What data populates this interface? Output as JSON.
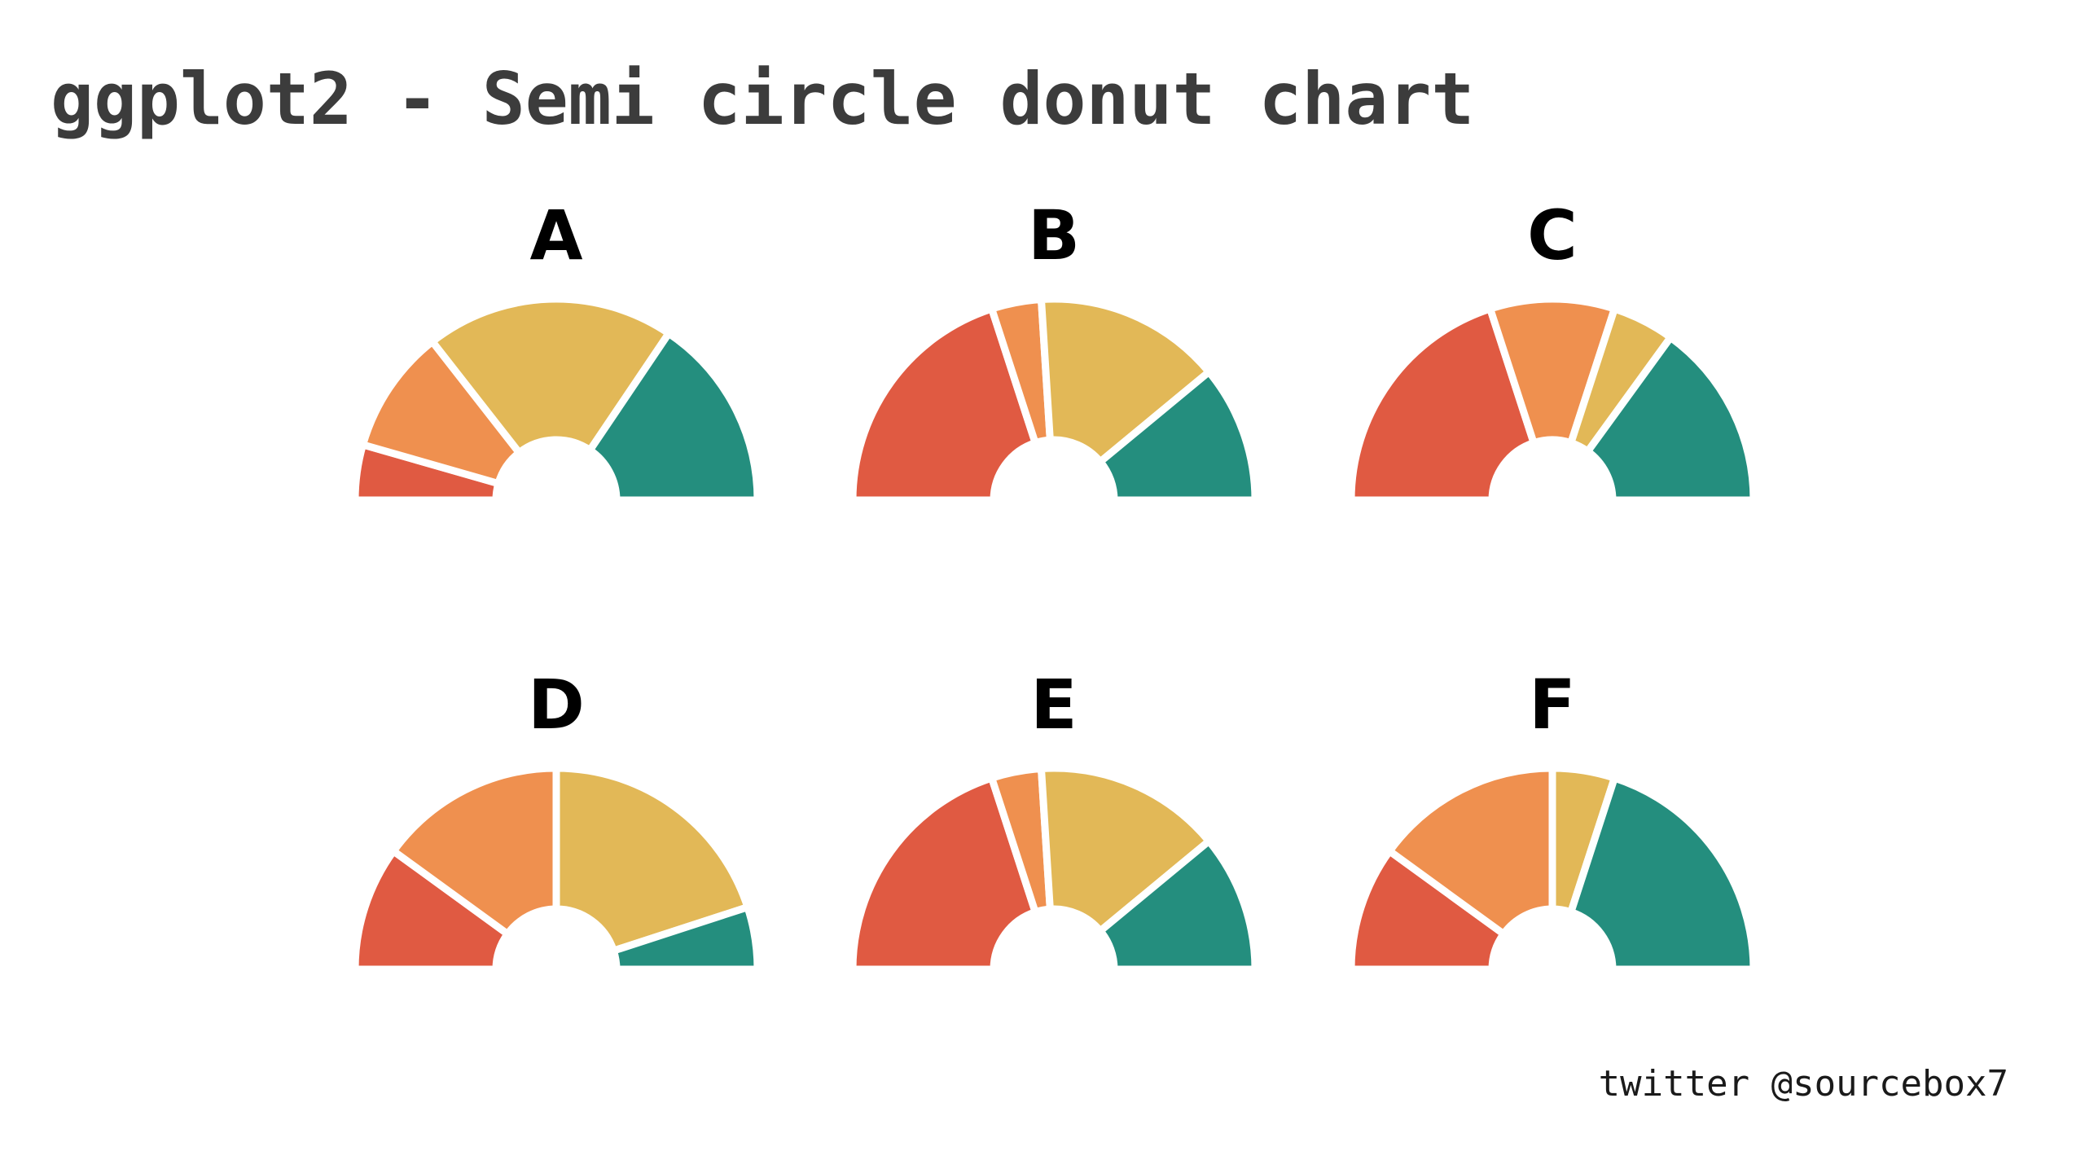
{
  "title": "ggplot2 - Semi circle donut chart",
  "credit": "twitter @sourcebox7",
  "colors": {
    "segment_1": "#E05A42",
    "segment_2": "#EF904F",
    "segment_3": "#E2B857",
    "segment_4": "#248E7E",
    "separator": "#ffffff",
    "title_text": "#3c3c3c"
  },
  "chart_data": [
    {
      "type": "semi-donut",
      "panel": "A",
      "values": [
        8,
        18,
        36,
        28
      ],
      "colors": [
        "#E05A42",
        "#EF904F",
        "#E2B857",
        "#248E7E"
      ]
    },
    {
      "type": "semi-donut",
      "panel": "B",
      "values": [
        40,
        8,
        30,
        22
      ],
      "colors": [
        "#E05A42",
        "#EF904F",
        "#E2B857",
        "#248E7E"
      ]
    },
    {
      "type": "semi-donut",
      "panel": "C",
      "values": [
        40,
        20,
        10,
        30
      ],
      "colors": [
        "#E05A42",
        "#EF904F",
        "#E2B857",
        "#248E7E"
      ]
    },
    {
      "type": "semi-donut",
      "panel": "D",
      "values": [
        20,
        30,
        40,
        10
      ],
      "colors": [
        "#E05A42",
        "#EF904F",
        "#E2B857",
        "#248E7E"
      ]
    },
    {
      "type": "semi-donut",
      "panel": "E",
      "values": [
        40,
        8,
        30,
        22
      ],
      "colors": [
        "#E05A42",
        "#EF904F",
        "#E2B857",
        "#248E7E"
      ]
    },
    {
      "type": "semi-donut",
      "panel": "F",
      "values": [
        20,
        30,
        10,
        40
      ],
      "colors": [
        "#E05A42",
        "#EF904F",
        "#E2B857",
        "#248E7E"
      ]
    }
  ]
}
